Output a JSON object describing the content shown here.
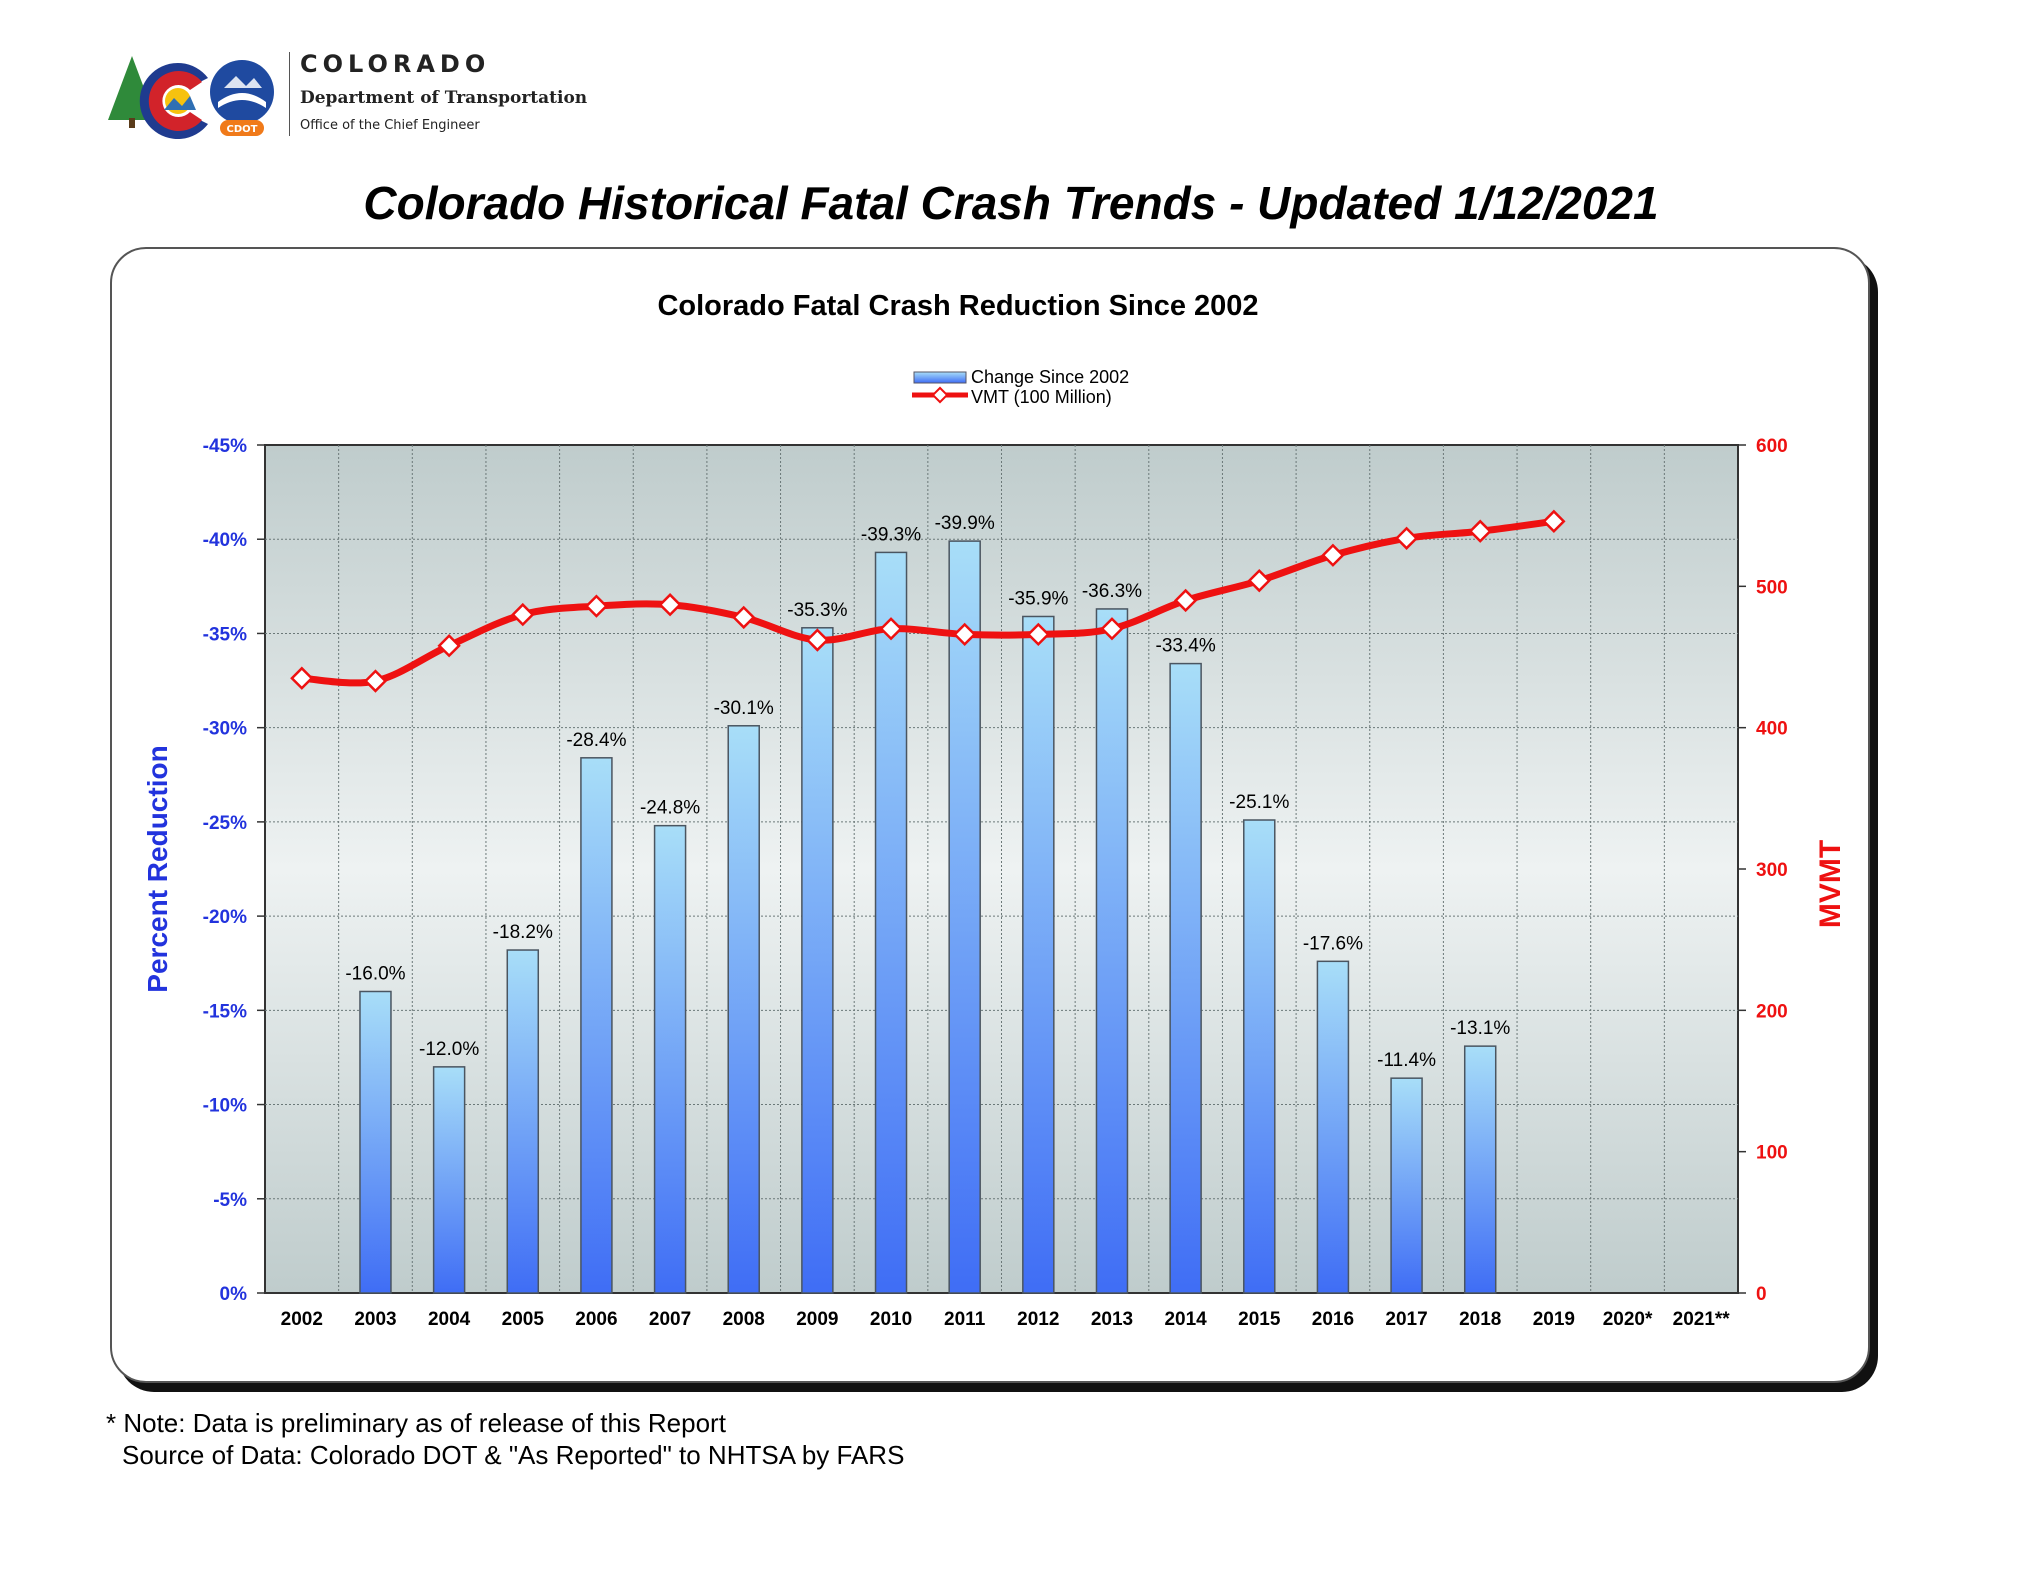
{
  "header": {
    "org_name": "COLORADO",
    "org_department": "Department of Transportation",
    "org_office": "Office of the Chief Engineer",
    "logo_badge_text": "CDOT",
    "logo_icon": "colorado-c-logo",
    "cdot_icon": "cdot-road-badge"
  },
  "page_title": "Colorado Historical Fatal Crash Trends - Updated 1/12/2021",
  "footer": {
    "note": "* Note: Data is preliminary as of release of this Report",
    "source": "Source of Data: Colorado DOT & \"As Reported\" to NHTSA by FARS"
  },
  "colors": {
    "bar_top": "#a8def8",
    "bar_bottom": "#3f6df5",
    "line": "#ee1111",
    "left_axis": "#2233dd",
    "right_axis": "#ee1111"
  },
  "chart_data": {
    "type": "bar",
    "title": "Colorado Fatal Crash Reduction Since 2002",
    "categories": [
      "2002",
      "2003",
      "2004",
      "2005",
      "2006",
      "2007",
      "2008",
      "2009",
      "2010",
      "2011",
      "2012",
      "2013",
      "2014",
      "2015",
      "2016",
      "2017",
      "2018",
      "2019",
      "2020*",
      "2021**"
    ],
    "ylabel": "Percent Reduction",
    "y2label": "MVMT",
    "ylim": [
      0,
      -45
    ],
    "y2lim": [
      0,
      600
    ],
    "yticks": [
      "0%",
      "-5%",
      "-10%",
      "-15%",
      "-20%",
      "-25%",
      "-30%",
      "-35%",
      "-40%",
      "-45%"
    ],
    "y2ticks": [
      "0",
      "100",
      "200",
      "300",
      "400",
      "500",
      "600"
    ],
    "grid": true,
    "legend_position": "top-center",
    "series": [
      {
        "name": "Change Since 2002",
        "type": "bar",
        "axis": "left",
        "values": [
          null,
          -16.0,
          -12.0,
          -18.2,
          -28.4,
          -24.8,
          -30.1,
          -35.3,
          -39.3,
          -39.9,
          -35.9,
          -36.3,
          -33.4,
          -25.1,
          -17.6,
          -11.4,
          -13.1,
          null,
          null,
          null
        ],
        "labels": [
          null,
          "-16.0%",
          "-12.0%",
          "-18.2%",
          "-28.4%",
          "-24.8%",
          "-30.1%",
          "-35.3%",
          "-39.3%",
          "-39.9%",
          "-35.9%",
          "-36.3%",
          "-33.4%",
          "-25.1%",
          "-17.6%",
          "-11.4%",
          "-13.1%",
          null,
          null,
          null
        ]
      },
      {
        "name": "VMT (100 Million)",
        "type": "line",
        "axis": "right",
        "values": [
          435,
          433,
          458,
          480,
          486,
          487,
          478,
          462,
          470,
          466,
          466,
          470,
          490,
          504,
          522,
          534,
          539,
          546,
          null,
          null
        ]
      }
    ]
  }
}
